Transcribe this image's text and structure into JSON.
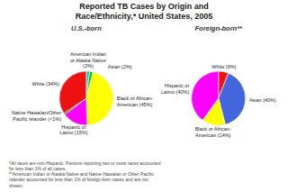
{
  "title": "Reported TB Cases by Origin and\nRace/Ethnicity,* United States, 2005",
  "footnote": "*All races are non-Hispanic. Persons reporting two or more races accounted\nfor less than 1% of all cases.\n**American Indian or Alaska Native and Native Hawaiian or Other Pacific\nIslander accounted for less than 1% of foreign-born cases and are not\nshown.",
  "chart_data": [
    {
      "type": "pie",
      "subtitle": "U.S.-born",
      "values": [
        2,
        2,
        45,
        15,
        1,
        34
      ],
      "value_labels": [
        "American Indian\nor Alaska Native\n(2%)",
        "Asian (2%)",
        "Black or African-\nAmerican (45%)",
        "Hispanic or\nLatino (15%)",
        "Native Hawaiian/Other\nPacific Islander (<1%)",
        "White (34%)"
      ],
      "colors": [
        "#00CCCC",
        "#00CC00",
        "#FFFF00",
        "#FF00FF",
        "#006600",
        "#EE1111"
      ],
      "data_labels": true
    },
    {
      "type": "pie",
      "subtitle": "Foreign-born**",
      "values": [
        6,
        40,
        14,
        40
      ],
      "value_labels": [
        "White (6%)",
        "Asian (40%)",
        "Black or African-\nAmerican (14%)",
        "Hispanic or\nLatino (40%)"
      ],
      "colors": [
        "#EE1111",
        "#4466DD",
        "#FFFF00",
        "#FF00FF"
      ],
      "data_labels": true
    }
  ]
}
